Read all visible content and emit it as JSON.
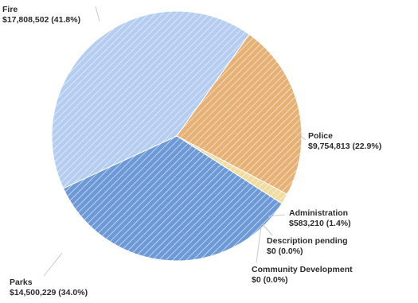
{
  "chart_data": {
    "type": "pie",
    "slices": [
      {
        "name": "Fire",
        "value": 17808502,
        "value_label": "$17,808,502 (41.8%)",
        "percent": 41.8,
        "color": "#b4cdf0"
      },
      {
        "name": "Police",
        "value": 9754813,
        "value_label": "$9,754,813 (22.9%)",
        "percent": 22.9,
        "color": "#e6b174"
      },
      {
        "name": "Administration",
        "value": 583210,
        "value_label": "$583,210 (1.4%)",
        "percent": 1.4,
        "color": "#f0dca0"
      },
      {
        "name": "Description pending",
        "value": 0,
        "value_label": "$0 (0.0%)",
        "percent": 0.0,
        "color": "#d9d9d9"
      },
      {
        "name": "Community Development",
        "value": 0,
        "value_label": "$0 (0.0%)",
        "percent": 0.0,
        "color": "#cfcfcf"
      },
      {
        "name": "Parks",
        "value": 14500229,
        "value_label": "$14,500,229 (34.0%)",
        "percent": 34.0,
        "color": "#6d9ad6"
      }
    ]
  }
}
